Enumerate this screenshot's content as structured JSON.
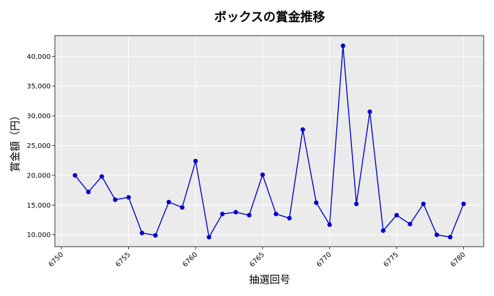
{
  "chart_data": {
    "type": "line",
    "title": "ボックスの賞金推移",
    "xlabel": "抽選回号",
    "ylabel": "賞金額（円）",
    "xlim": [
      6749.5,
      6781.5
    ],
    "ylim": [
      8000,
      43500
    ],
    "grid": true,
    "legend": "none",
    "x_ticks": [
      6750,
      6755,
      6760,
      6765,
      6770,
      6775,
      6780
    ],
    "y_ticks": [
      10000,
      15000,
      20000,
      25000,
      30000,
      35000,
      40000
    ],
    "y_tick_labels": [
      "10,000",
      "15,000",
      "20,000",
      "25,000",
      "30,000",
      "35,000",
      "40,000"
    ],
    "series": [
      {
        "color": "#0000cc",
        "x": [
          6751,
          6752,
          6753,
          6754,
          6755,
          6756,
          6757,
          6758,
          6759,
          6760,
          6761,
          6762,
          6763,
          6764,
          6765,
          6766,
          6767,
          6768,
          6769,
          6770,
          6771,
          6772,
          6773,
          6774,
          6775,
          6776,
          6777,
          6778,
          6779,
          6780
        ],
        "values": [
          20000,
          17200,
          19800,
          15900,
          16300,
          10300,
          9900,
          15500,
          14600,
          22400,
          9600,
          13500,
          13800,
          13300,
          20100,
          13500,
          12800,
          27700,
          15400,
          11700,
          41800,
          15200,
          30700,
          10700,
          13300,
          11800,
          15200,
          10000,
          9600,
          15200
        ]
      }
    ]
  }
}
